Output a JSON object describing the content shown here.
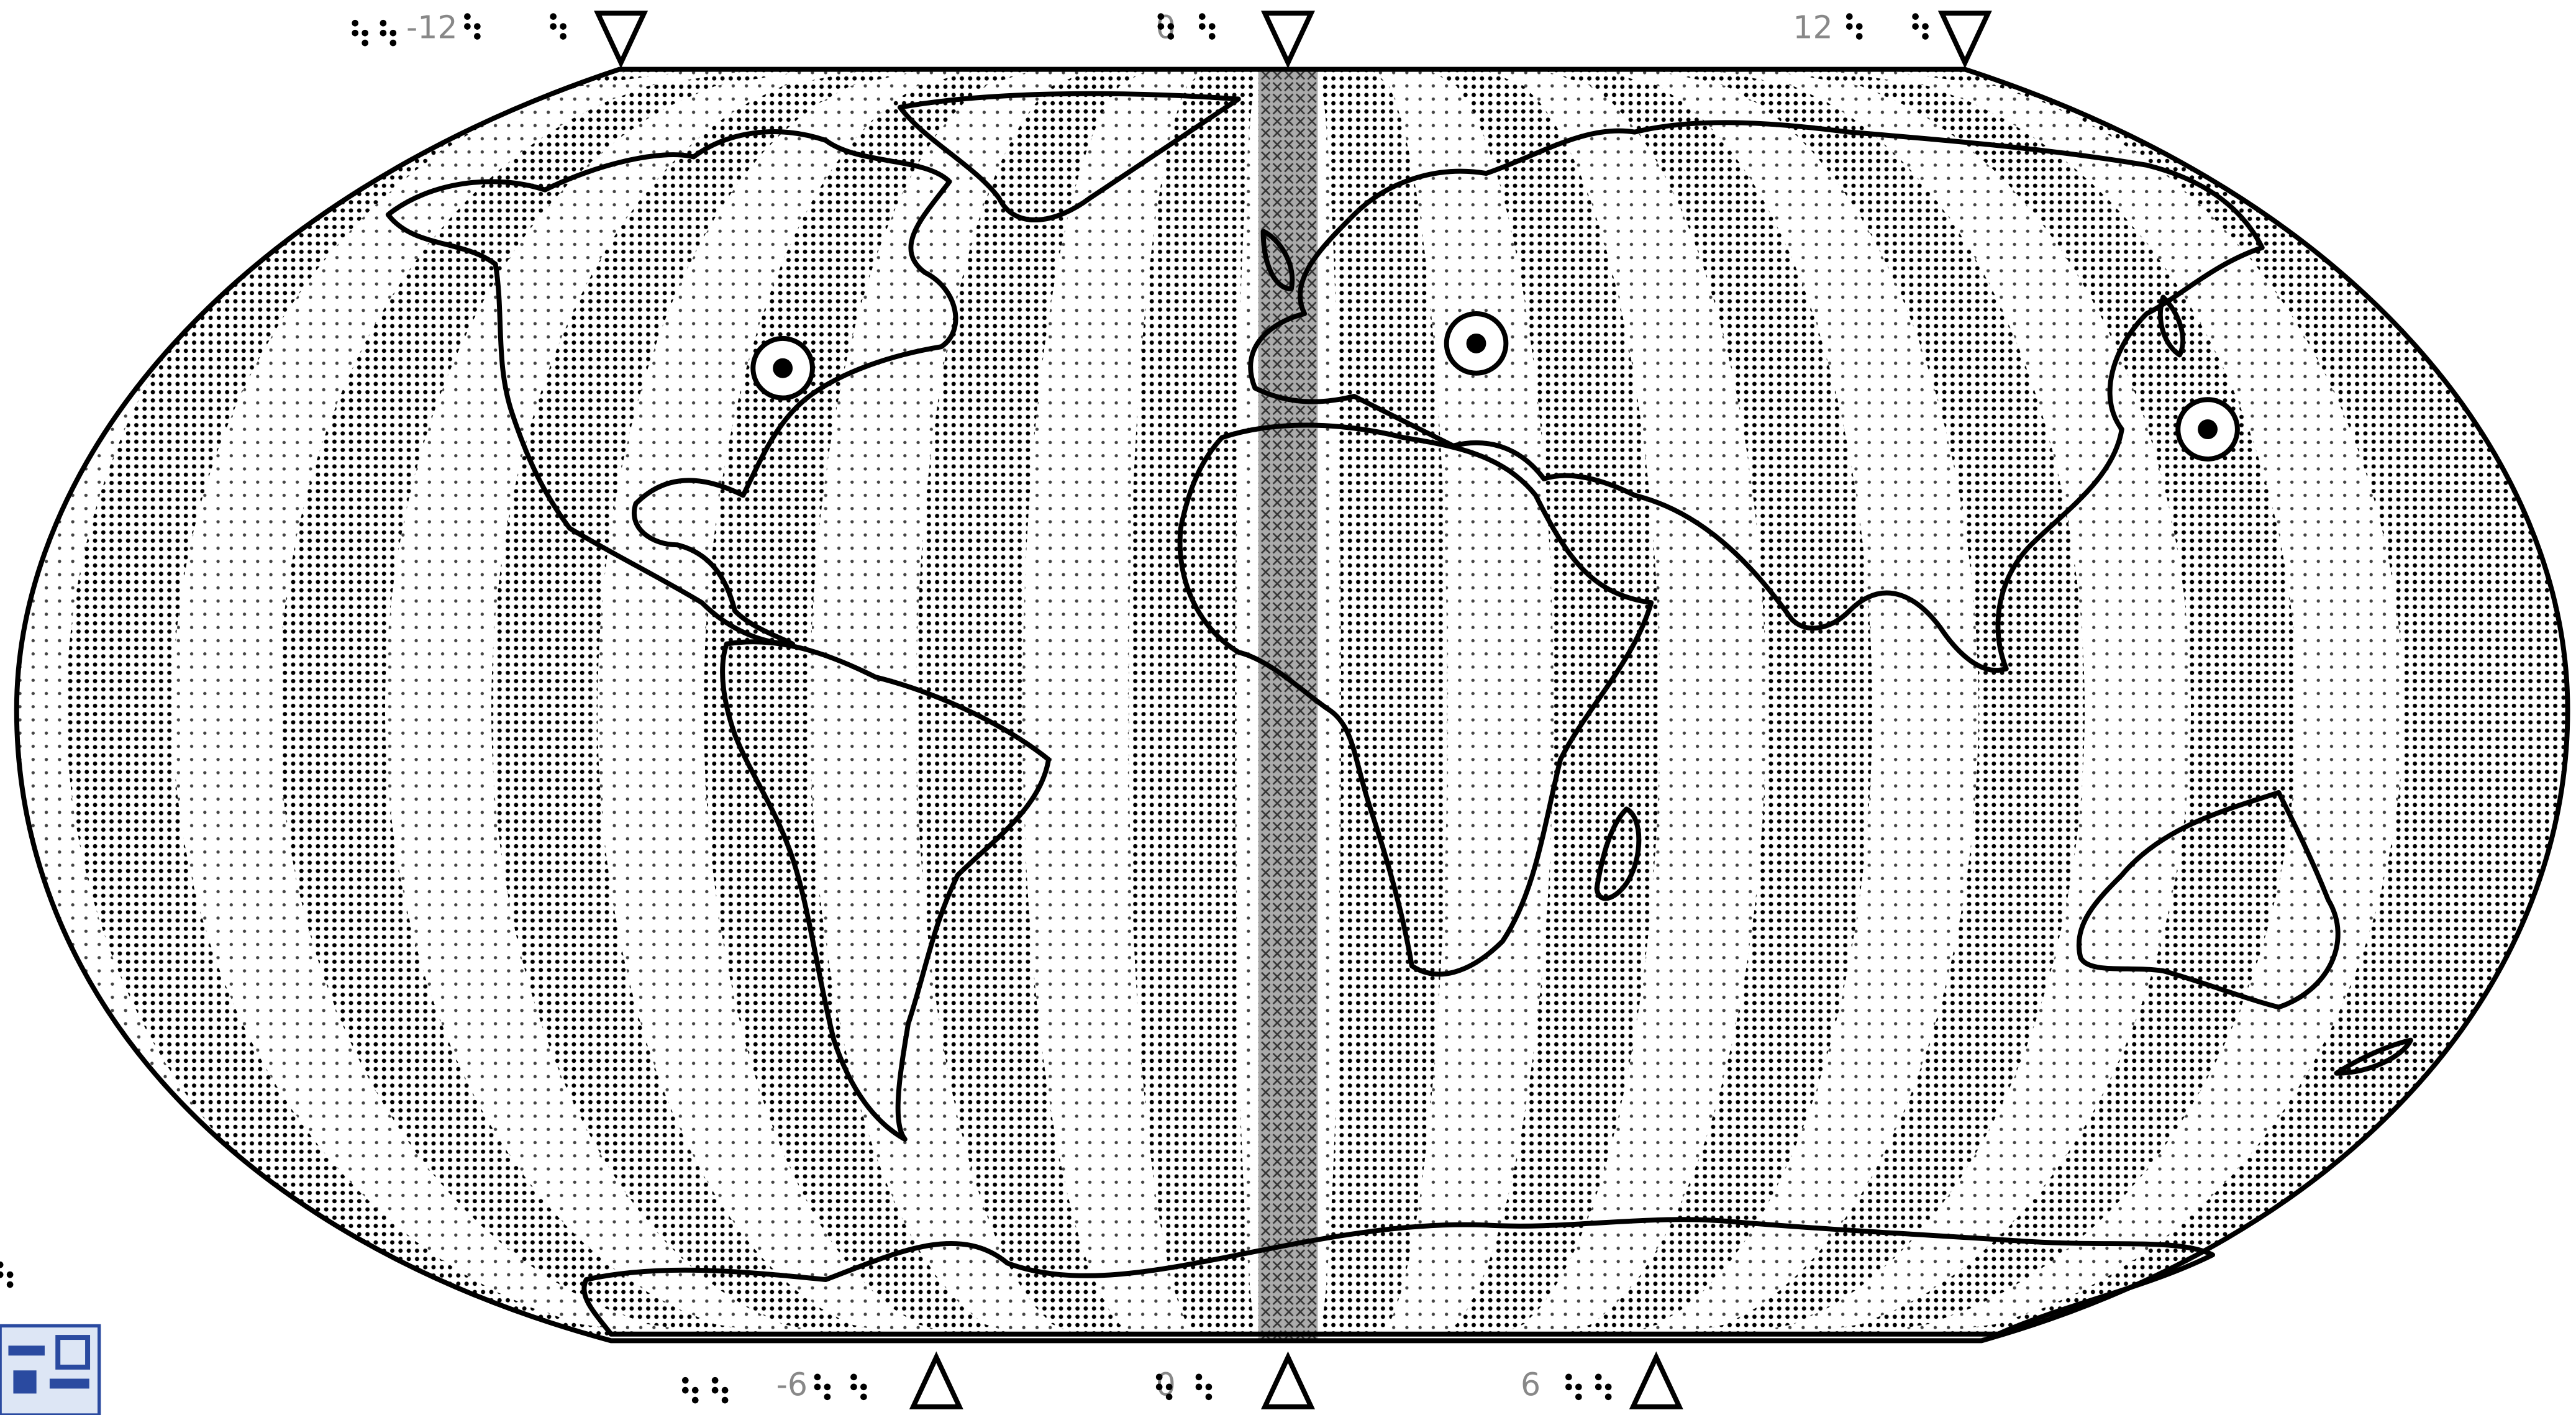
{
  "top_labels": [
    "-12",
    "0",
    "12"
  ],
  "bottom_labels": [
    "-6",
    "0",
    "6"
  ]
}
